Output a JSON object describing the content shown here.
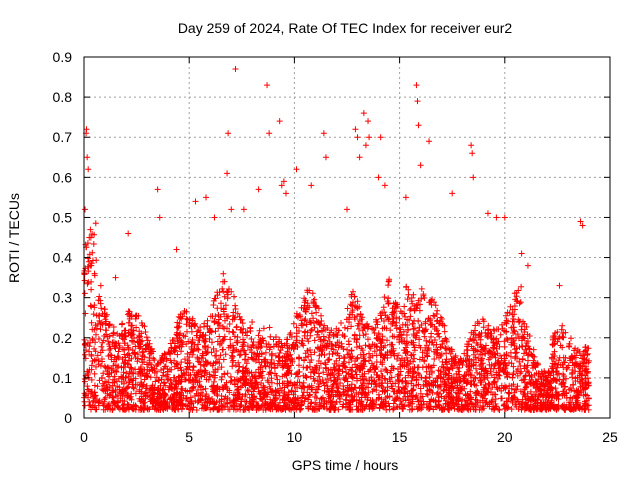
{
  "chart_data": {
    "type": "scatter",
    "title": "Day 259 of 2024, Rate Of TEC Index for receiver eur2",
    "xlabel": "GPS time / hours",
    "ylabel": "ROTI / TECUs",
    "xlim": [
      0,
      25
    ],
    "ylim": [
      0,
      0.9
    ],
    "x_ticks": [
      0,
      5,
      10,
      15,
      20,
      25
    ],
    "y_ticks": [
      0,
      0.1,
      0.2,
      0.3,
      0.4,
      0.5,
      0.6,
      0.7,
      0.8,
      0.9
    ],
    "x_tick_labels": [
      "0",
      "5",
      "10",
      "15",
      "20",
      "25"
    ],
    "y_tick_labels": [
      "0",
      "0.1",
      "0.2",
      "0.3",
      "0.4",
      "0.5",
      "0.6",
      "0.7",
      "0.8",
      "0.9"
    ],
    "grid": true,
    "marker": "plus",
    "color": "#ff0000",
    "series": [
      {
        "name": "ROTI",
        "x": [
          0.05,
          0.1,
          0.12,
          0.15,
          0.2,
          0.25,
          0.3,
          0.5,
          0.8,
          1.5,
          2.1,
          3.5,
          3.6,
          4.4,
          5.3,
          5.8,
          6.2,
          6.8,
          6.85,
          7.0,
          7.2,
          7.6,
          8.3,
          8.7,
          8.8,
          9.3,
          9.4,
          9.5,
          9.6,
          10.1,
          10.8,
          11.4,
          11.5,
          12.5,
          12.9,
          13.0,
          13.1,
          13.3,
          13.4,
          13.5,
          13.55,
          14.0,
          14.1,
          14.3,
          15.3,
          15.8,
          15.85,
          15.9,
          16.0,
          16.4,
          17.5,
          18.4,
          18.45,
          18.5,
          19.2,
          19.6,
          20.0,
          20.8,
          21.1,
          22.6,
          23.6,
          23.7
        ],
        "y": [
          0.52,
          0.71,
          0.72,
          0.65,
          0.62,
          0.45,
          0.38,
          0.36,
          0.33,
          0.35,
          0.46,
          0.57,
          0.5,
          0.42,
          0.54,
          0.55,
          0.5,
          0.61,
          0.71,
          0.52,
          0.87,
          0.52,
          0.57,
          0.83,
          0.71,
          0.74,
          0.58,
          0.59,
          0.56,
          0.62,
          0.58,
          0.71,
          0.65,
          0.52,
          0.72,
          0.7,
          0.65,
          0.76,
          0.68,
          0.74,
          0.7,
          0.6,
          0.7,
          0.58,
          0.55,
          0.83,
          0.79,
          0.73,
          0.63,
          0.69,
          0.56,
          0.68,
          0.66,
          0.6,
          0.51,
          0.5,
          0.5,
          0.41,
          0.38,
          0.33,
          0.49,
          0.48
        ]
      }
    ]
  }
}
